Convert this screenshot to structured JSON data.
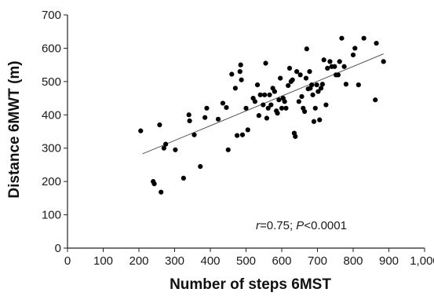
{
  "chart_data": {
    "type": "scatter",
    "xlabel": "Number of steps 6MST",
    "ylabel": "Distance 6MWT (m)",
    "xlim": [
      0,
      1000
    ],
    "ylim": [
      0,
      700
    ],
    "xticks": [
      0,
      100,
      200,
      300,
      400,
      500,
      600,
      700,
      800,
      900,
      1000
    ],
    "xtick_labels": [
      "0",
      "100",
      "200",
      "300",
      "400",
      "500",
      "600",
      "700",
      "800",
      "900",
      "1,000"
    ],
    "yticks": [
      0,
      100,
      200,
      300,
      400,
      500,
      600,
      700
    ],
    "ytick_labels": [
      "0",
      "100",
      "200",
      "300",
      "400",
      "500",
      "600",
      "700"
    ],
    "grid": false,
    "annotation": {
      "r_symbol": "r",
      "r_text": "=0.75; ",
      "p_symbol": "P",
      "p_text": "<0.0001"
    },
    "trendline": {
      "x": [
        210,
        885
      ],
      "y": [
        283,
        583
      ]
    },
    "marker_color": "#000000",
    "trendline_color": "#555555",
    "points": [
      {
        "x": 205,
        "y": 352
      },
      {
        "x": 240,
        "y": 200
      },
      {
        "x": 243,
        "y": 193
      },
      {
        "x": 258,
        "y": 370
      },
      {
        "x": 262,
        "y": 168
      },
      {
        "x": 270,
        "y": 300
      },
      {
        "x": 275,
        "y": 312
      },
      {
        "x": 302,
        "y": 295
      },
      {
        "x": 325,
        "y": 210
      },
      {
        "x": 340,
        "y": 400
      },
      {
        "x": 342,
        "y": 382
      },
      {
        "x": 355,
        "y": 340
      },
      {
        "x": 372,
        "y": 245
      },
      {
        "x": 385,
        "y": 392
      },
      {
        "x": 390,
        "y": 420
      },
      {
        "x": 422,
        "y": 387
      },
      {
        "x": 435,
        "y": 435
      },
      {
        "x": 445,
        "y": 422
      },
      {
        "x": 450,
        "y": 295
      },
      {
        "x": 460,
        "y": 522
      },
      {
        "x": 470,
        "y": 480
      },
      {
        "x": 475,
        "y": 338
      },
      {
        "x": 483,
        "y": 530
      },
      {
        "x": 485,
        "y": 550
      },
      {
        "x": 487,
        "y": 505
      },
      {
        "x": 490,
        "y": 340
      },
      {
        "x": 500,
        "y": 420
      },
      {
        "x": 505,
        "y": 355
      },
      {
        "x": 520,
        "y": 450
      },
      {
        "x": 525,
        "y": 440
      },
      {
        "x": 532,
        "y": 490
      },
      {
        "x": 536,
        "y": 398
      },
      {
        "x": 540,
        "y": 460
      },
      {
        "x": 548,
        "y": 430
      },
      {
        "x": 552,
        "y": 460
      },
      {
        "x": 555,
        "y": 555
      },
      {
        "x": 558,
        "y": 390
      },
      {
        "x": 562,
        "y": 420
      },
      {
        "x": 566,
        "y": 460
      },
      {
        "x": 570,
        "y": 430
      },
      {
        "x": 575,
        "y": 480
      },
      {
        "x": 580,
        "y": 470
      },
      {
        "x": 585,
        "y": 412
      },
      {
        "x": 588,
        "y": 405
      },
      {
        "x": 592,
        "y": 445
      },
      {
        "x": 596,
        "y": 510
      },
      {
        "x": 600,
        "y": 420
      },
      {
        "x": 604,
        "y": 450
      },
      {
        "x": 608,
        "y": 440
      },
      {
        "x": 612,
        "y": 420
      },
      {
        "x": 618,
        "y": 488
      },
      {
        "x": 622,
        "y": 540
      },
      {
        "x": 626,
        "y": 500
      },
      {
        "x": 630,
        "y": 505
      },
      {
        "x": 635,
        "y": 345
      },
      {
        "x": 638,
        "y": 335
      },
      {
        "x": 642,
        "y": 530
      },
      {
        "x": 648,
        "y": 440
      },
      {
        "x": 652,
        "y": 520
      },
      {
        "x": 656,
        "y": 455
      },
      {
        "x": 660,
        "y": 420
      },
      {
        "x": 664,
        "y": 410
      },
      {
        "x": 668,
        "y": 510
      },
      {
        "x": 670,
        "y": 598
      },
      {
        "x": 674,
        "y": 478
      },
      {
        "x": 678,
        "y": 530
      },
      {
        "x": 680,
        "y": 480
      },
      {
        "x": 684,
        "y": 490
      },
      {
        "x": 687,
        "y": 460
      },
      {
        "x": 690,
        "y": 380
      },
      {
        "x": 694,
        "y": 420
      },
      {
        "x": 698,
        "y": 490
      },
      {
        "x": 702,
        "y": 470
      },
      {
        "x": 706,
        "y": 385
      },
      {
        "x": 710,
        "y": 480
      },
      {
        "x": 714,
        "y": 492
      },
      {
        "x": 718,
        "y": 565
      },
      {
        "x": 724,
        "y": 430
      },
      {
        "x": 728,
        "y": 540
      },
      {
        "x": 735,
        "y": 560
      },
      {
        "x": 740,
        "y": 545
      },
      {
        "x": 748,
        "y": 545
      },
      {
        "x": 752,
        "y": 520
      },
      {
        "x": 758,
        "y": 520
      },
      {
        "x": 762,
        "y": 560
      },
      {
        "x": 768,
        "y": 630
      },
      {
        "x": 775,
        "y": 545
      },
      {
        "x": 780,
        "y": 492
      },
      {
        "x": 800,
        "y": 580
      },
      {
        "x": 805,
        "y": 600
      },
      {
        "x": 815,
        "y": 490
      },
      {
        "x": 830,
        "y": 630
      },
      {
        "x": 862,
        "y": 445
      },
      {
        "x": 865,
        "y": 615
      },
      {
        "x": 885,
        "y": 560
      }
    ]
  }
}
